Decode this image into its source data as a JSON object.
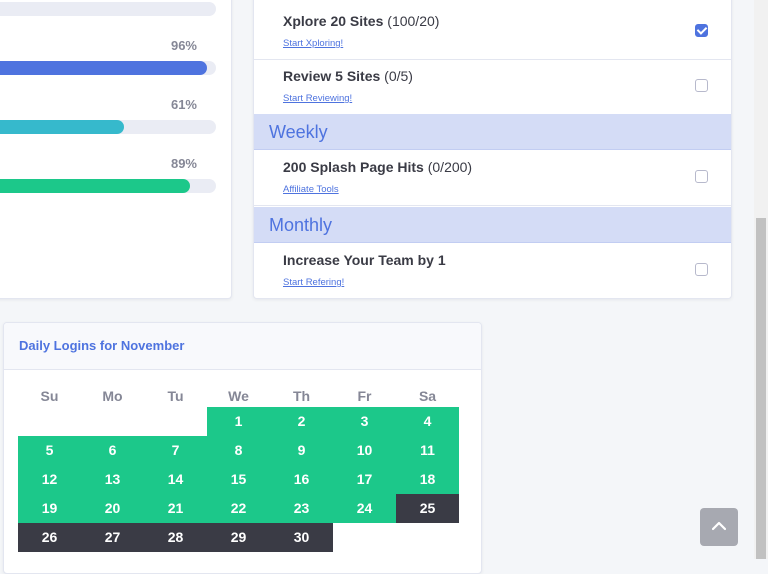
{
  "progress": [
    {
      "percent_label": "",
      "percent": 1.0,
      "color": "#eaecf4"
    },
    {
      "percent_label": "96%",
      "percent": 0.96,
      "color": "#4e73df"
    },
    {
      "percent_label": "61%",
      "percent": 0.61,
      "color": "#36b9cc"
    },
    {
      "percent_label": "89%",
      "percent": 0.89,
      "color": "#1cc88a"
    }
  ],
  "goals": {
    "daily": [
      {
        "title": "Xplore 20 Sites",
        "count": "(100/20)",
        "link": "Start Xploring!",
        "checked": true
      },
      {
        "title": "Review 5 Sites",
        "count": "(0/5)",
        "link": "Start Reviewing!",
        "checked": false
      }
    ],
    "weekly_heading": "Weekly",
    "weekly": [
      {
        "title": "200 Splash Page Hits",
        "count": "(0/200)",
        "link": "Affiliate Tools",
        "checked": false
      }
    ],
    "monthly_heading": "Monthly",
    "monthly": [
      {
        "title": "Increase Your Team by 1",
        "count": "",
        "link": "Start Refering!",
        "checked": false
      }
    ]
  },
  "calendar": {
    "title": "Daily Logins for November",
    "weekdays": [
      "Su",
      "Mo",
      "Tu",
      "We",
      "Th",
      "Fr",
      "Sa"
    ],
    "first_weekday_index": 3,
    "days": [
      "1",
      "2",
      "3",
      "4",
      "5",
      "6",
      "7",
      "8",
      "9",
      "10",
      "11",
      "12",
      "13",
      "14",
      "15",
      "16",
      "17",
      "18",
      "19",
      "20",
      "21",
      "22",
      "23",
      "24",
      "25",
      "26",
      "27",
      "28",
      "29",
      "30"
    ],
    "logged_in_through": 24,
    "colors": {
      "logged": "#1cc88a",
      "not_logged": "#3a3b45"
    }
  },
  "icons": {
    "scroll_top": "chevron-up-icon",
    "checkbox_checked": "check-icon"
  }
}
